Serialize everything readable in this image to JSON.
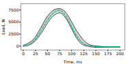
{
  "chart_data": {
    "type": "line",
    "xlabel": "Time, ms",
    "ylabel": "Load, N",
    "x": [
      0,
      5,
      10,
      15,
      20,
      25,
      30,
      35,
      40,
      45,
      50,
      55,
      60,
      65,
      70,
      75,
      80,
      85,
      90,
      95,
      100,
      105,
      110,
      115,
      120,
      125,
      130,
      135,
      140,
      145,
      150,
      155,
      160,
      165,
      170,
      175,
      180,
      185,
      190,
      195,
      200
    ],
    "series": [
      {
        "type": "band",
        "color": "#b0b0b0",
        "low": [
          -50,
          50,
          150,
          350,
          700,
          1100,
          1700,
          2400,
          3100,
          4000,
          4800,
          5500,
          6100,
          6500,
          6800,
          6950,
          6750,
          6200,
          5500,
          4600,
          3600,
          2600,
          1700,
          1000,
          500,
          200,
          50,
          -50,
          -150,
          -200,
          -250,
          -250,
          -250,
          -230,
          -220,
          -210,
          -200,
          -200,
          -200,
          -200,
          -200
        ],
        "high": [
          200,
          350,
          600,
          900,
          1300,
          1900,
          2700,
          3600,
          4500,
          5400,
          6200,
          6800,
          7300,
          7600,
          7750,
          7800,
          7650,
          7300,
          6700,
          5900,
          5000,
          4100,
          3200,
          2500,
          1800,
          1200,
          750,
          400,
          200,
          100,
          50,
          0,
          -50,
          -80,
          -80,
          -80,
          -80,
          -80,
          -80,
          -80,
          -80
        ]
      },
      {
        "type": "line",
        "color": "#444444",
        "line_style": "solid",
        "values": [
          -50,
          50,
          150,
          350,
          700,
          1100,
          1700,
          2400,
          3100,
          4000,
          4800,
          5500,
          6100,
          6500,
          6800,
          6950,
          6750,
          6200,
          5500,
          4600,
          3600,
          2600,
          1700,
          1000,
          500,
          200,
          50,
          -50,
          -150,
          -200,
          -250,
          -250,
          -250,
          -230,
          -220,
          -210,
          -200,
          -200,
          -200,
          -200,
          -200
        ]
      },
      {
        "type": "line",
        "color": "#444444",
        "line_style": "solid",
        "values": [
          200,
          350,
          600,
          900,
          1300,
          1900,
          2700,
          3600,
          4500,
          5400,
          6200,
          6800,
          7300,
          7600,
          7750,
          7800,
          7650,
          7300,
          6700,
          5900,
          5000,
          4100,
          3200,
          2500,
          1800,
          1200,
          750,
          400,
          200,
          100,
          50,
          0,
          -50,
          -80,
          -80,
          -80,
          -80,
          -80,
          -80,
          -80,
          -80
        ]
      },
      {
        "type": "line",
        "color": "#00bb88",
        "line_style": "dashed",
        "values": [
          50,
          120,
          250,
          500,
          900,
          1400,
          2100,
          2900,
          3700,
          4600,
          5400,
          6100,
          6700,
          7100,
          7350,
          7450,
          7200,
          6700,
          6000,
          5100,
          4100,
          3100,
          2200,
          1500,
          900,
          500,
          250,
          100,
          20,
          -30,
          -80,
          -100,
          -100,
          -100,
          -100,
          -100,
          -100,
          -100,
          -100,
          -100,
          -100
        ]
      }
    ],
    "xlim": [
      -5,
      210
    ],
    "ylim": [
      -800,
      8800
    ],
    "xticks": [
      0,
      25,
      50,
      75,
      100,
      125,
      150,
      175,
      200
    ],
    "yticks": [
      0,
      2500,
      5000,
      7500
    ]
  }
}
